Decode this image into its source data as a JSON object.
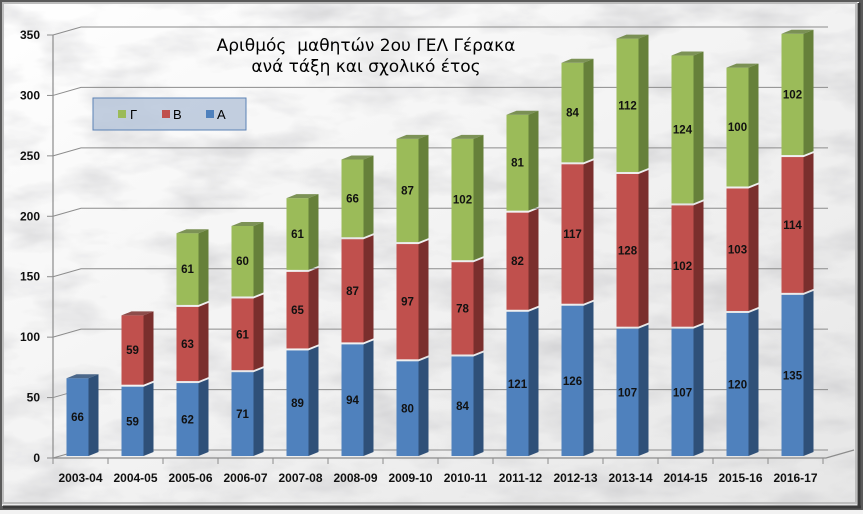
{
  "chart_data": {
    "type": "bar",
    "stacked": true,
    "style": "3d-column",
    "title": "Αριθμός  μαθητών 2ου ΓΕΛ Γέρακα",
    "subtitle": "ανά τάξη και σχολικό έτος",
    "xlabel": "",
    "ylabel": "",
    "ylim": [
      0,
      350
    ],
    "yticks": [
      0,
      50,
      100,
      150,
      200,
      250,
      300,
      350
    ],
    "grid": true,
    "legend_position": "top-left",
    "categories": [
      "2003-04",
      "2004-05",
      "2005-06",
      "2006-07",
      "2007-08",
      "2008-09",
      "2009-10",
      "2010-11",
      "2011-12",
      "2012-13",
      "2013-14",
      "2014-15",
      "2015-16",
      "2016-17"
    ],
    "series": [
      {
        "name": "Α",
        "color": "#4f81bd",
        "side": "#2f5078",
        "values": [
          66,
          59,
          62,
          71,
          89,
          94,
          80,
          84,
          121,
          126,
          107,
          107,
          120,
          135
        ]
      },
      {
        "name": "Β",
        "color": "#c0504d",
        "side": "#7a2f2d",
        "values": [
          null,
          59,
          63,
          61,
          65,
          87,
          97,
          78,
          82,
          117,
          128,
          102,
          103,
          114
        ]
      },
      {
        "name": "Γ",
        "color": "#9bbb59",
        "side": "#66803a",
        "values": [
          null,
          null,
          61,
          60,
          61,
          66,
          87,
          102,
          81,
          84,
          112,
          124,
          100,
          102
        ]
      }
    ],
    "legend_order": [
      "Γ",
      "Β",
      "Α"
    ]
  }
}
